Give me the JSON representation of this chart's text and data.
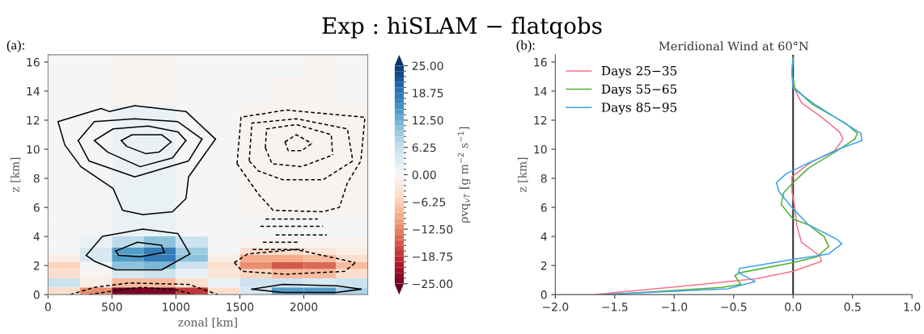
{
  "chart_data": [
    {
      "type": "heatmap",
      "title": "Exp : hiSLAM − flatqobs",
      "xlabel": "zonal [km]",
      "ylabel": "z [km]",
      "clabel": "ρvq$_{vT}$ [g m$^{−2}$ s$^{−1}$]",
      "annotations": [
        "(a):"
      ],
      "x": [
        125,
        375,
        625,
        875,
        1125,
        1375,
        1625,
        1875,
        2125,
        2375
      ],
      "y": [
        0.25,
        0.75,
        1.5,
        2.0,
        2.5,
        3.0,
        3.5,
        4.5,
        6,
        8,
        10,
        12,
        14,
        16
      ],
      "cells": [
        [
          -4,
          -12,
          -24,
          -25,
          -18,
          -5,
          4,
          14,
          14,
          8
        ],
        [
          6,
          -2,
          -8,
          -8,
          -4,
          2,
          6,
          6,
          4,
          6
        ],
        [
          -4,
          -1,
          4,
          5,
          2,
          -3,
          -6,
          -8,
          -8,
          -5
        ],
        [
          -6,
          0,
          10,
          12,
          6,
          -4,
          -12,
          -16,
          -14,
          -8
        ],
        [
          -2,
          4,
          14,
          18,
          10,
          -2,
          -10,
          -10,
          -8,
          -4
        ],
        [
          0,
          4,
          14,
          18,
          9,
          0,
          -4,
          -4,
          -3,
          -2
        ],
        [
          0,
          2,
          7,
          10,
          5,
          0,
          -1,
          -1,
          -1,
          -1
        ],
        [
          0,
          1,
          2,
          2,
          1,
          0,
          0,
          0,
          0,
          0
        ],
        [
          1,
          1,
          1.5,
          1.5,
          1,
          0,
          -1,
          -1,
          -1,
          -1
        ],
        [
          1,
          1,
          1.5,
          1.5,
          1,
          0,
          -1,
          -1,
          -1,
          -1
        ],
        [
          1,
          1,
          1.5,
          1.5,
          1,
          0,
          -1,
          -1,
          -1,
          -1
        ],
        [
          1,
          1,
          1.5,
          1.5,
          1,
          0,
          -1,
          -1,
          -1,
          -1
        ],
        [
          0.5,
          0,
          -0.5,
          -0.5,
          0,
          0.5,
          0,
          -0.5,
          -0.5,
          0
        ],
        [
          1,
          0,
          -0.5,
          -0.5,
          0,
          0,
          0,
          0,
          -0.5,
          0
        ]
      ],
      "clim": [
        -25,
        25
      ],
      "cticks": [
        {
          "value": 25,
          "label": "25.00"
        },
        {
          "value": 18.75,
          "label": "18.75"
        },
        {
          "value": 12.5,
          "label": "12.50"
        },
        {
          "value": 6.25,
          "label": "6.25"
        },
        {
          "value": 0,
          "label": "0.00"
        },
        {
          "value": -6.25,
          "label": "−6.25"
        },
        {
          "value": -12.5,
          "label": "−12.50"
        },
        {
          "value": -18.75,
          "label": "−18.75"
        },
        {
          "value": -25,
          "label": "−25.00"
        }
      ],
      "xlim": [
        0,
        2500
      ],
      "ylim": [
        0,
        16.5
      ],
      "xticks": [
        0,
        500,
        1000,
        1500,
        2000
      ],
      "yticks": [
        0,
        2,
        4,
        6,
        8,
        10,
        12,
        14,
        16
      ],
      "series": [
        {
          "type": "line",
          "color": "#000000",
          "line_style": "solid",
          "x": [
            78,
            415,
            478,
            678,
            1078,
            1309
          ],
          "values": [
            11.9,
            12.8,
            12.6,
            13.0,
            12.6,
            10.7
          ]
        },
        {
          "type": "line",
          "color": "#000000",
          "line_style": "solid",
          "x": [
            78,
            131,
            257,
            509,
            583,
            741,
            973,
            1078,
            1099,
            1309
          ],
          "values": [
            11.9,
            10.3,
            8.8,
            7.3,
            5.8,
            5.5,
            5.7,
            6.6,
            8.1,
            10.7
          ]
        },
        {
          "type": "line",
          "color": "#000000",
          "line_style": "solid",
          "x": [
            236,
            362,
            678,
            1015,
            1204
          ],
          "values": [
            10.6,
            11.9,
            12.1,
            11.9,
            10.7
          ]
        },
        {
          "type": "line",
          "color": "#000000",
          "line_style": "solid",
          "x": [
            236,
            320,
            678,
            1099,
            1204
          ],
          "values": [
            10.6,
            9.2,
            8.1,
            9.2,
            10.7
          ]
        },
        {
          "type": "line",
          "color": "#000000",
          "line_style": "solid",
          "x": [
            362,
            509,
            783,
            1015,
            1078
          ],
          "values": [
            10.6,
            11.4,
            11.6,
            11.2,
            10.6
          ]
        },
        {
          "type": "line",
          "color": "#000000",
          "line_style": "solid",
          "x": [
            362,
            467,
            720,
            973,
            1078
          ],
          "values": [
            10.6,
            9.8,
            8.8,
            9.4,
            10.6
          ]
        },
        {
          "type": "line",
          "color": "#000000",
          "line_style": "solid",
          "x": [
            573,
            657,
            888,
            962
          ],
          "values": [
            10.6,
            11.0,
            11.0,
            10.5
          ]
        },
        {
          "type": "line",
          "color": "#000000",
          "line_style": "solid",
          "x": [
            573,
            615,
            762,
            867,
            962
          ],
          "values": [
            10.6,
            10.2,
            9.7,
            9.8,
            10.5
          ]
        },
        {
          "type": "line",
          "color": "#000000",
          "line_style": "solid",
          "x": [
            299,
            425,
            741,
            1015,
            1109
          ],
          "values": [
            2.7,
            4.0,
            4.5,
            4.2,
            2.8
          ]
        },
        {
          "type": "line",
          "color": "#000000",
          "line_style": "solid",
          "x": [
            299,
            362,
            530,
            888,
            1109
          ],
          "values": [
            2.7,
            2.3,
            1.7,
            1.7,
            2.8
          ]
        },
        {
          "type": "line",
          "color": "#000000",
          "line_style": "solid",
          "x": [
            530,
            699,
            888,
            909
          ],
          "values": [
            3.0,
            3.6,
            3.4,
            2.9
          ]
        },
        {
          "type": "line",
          "color": "#000000",
          "line_style": "solid",
          "x": [
            530,
            552,
            720,
            909
          ],
          "values": [
            3.0,
            2.7,
            2.6,
            2.9
          ]
        },
        {
          "type": "line",
          "color": "#000000",
          "line_style": "solid",
          "x": [
            1594,
            1836,
            2257,
            2446
          ],
          "values": [
            0.37,
            0.7,
            0.6,
            0.37
          ]
        },
        {
          "type": "line",
          "color": "#000000",
          "line_style": "solid",
          "x": [
            1594,
            1836,
            2257,
            2446
          ],
          "values": [
            0.37,
            0.15,
            0.15,
            0.37
          ]
        },
        {
          "type": "line",
          "color": "#000000",
          "line_style": "dashed",
          "x": [
            1478,
            1509,
            1857,
            2478
          ],
          "values": [
            9.0,
            12.2,
            12.7,
            12.2
          ]
        },
        {
          "type": "line",
          "color": "#000000",
          "line_style": "dashed",
          "x": [
            1478,
            1646,
            1760,
            2150,
            2278,
            2341,
            2446,
            2478
          ],
          "values": [
            9.0,
            6.9,
            5.8,
            5.7,
            6.0,
            7.7,
            9.2,
            12.2
          ]
        },
        {
          "type": "line",
          "color": "#000000",
          "line_style": "dashed",
          "x": [
            1700,
            2110
          ],
          "values": [
            5.2,
            5.2
          ]
        },
        {
          "type": "line",
          "color": "#000000",
          "line_style": "dashed",
          "x": [
            1660,
            2150
          ],
          "values": [
            4.7,
            4.7
          ]
        },
        {
          "type": "line",
          "color": "#000000",
          "line_style": "dashed",
          "x": [
            1780,
            2180
          ],
          "values": [
            4.1,
            4.1
          ]
        },
        {
          "type": "line",
          "color": "#000000",
          "line_style": "dashed",
          "x": [
            1680,
            1960
          ],
          "values": [
            3.6,
            3.6
          ]
        },
        {
          "type": "line",
          "color": "#000000",
          "line_style": "dashed",
          "x": [
            1600,
            2000
          ],
          "values": [
            3.1,
            3.1
          ]
        },
        {
          "type": "line",
          "color": "#000000",
          "line_style": "dashed",
          "x": [
            1573,
            1594,
            1941,
            2341,
            2383
          ],
          "values": [
            9.2,
            11.8,
            12.1,
            11.4,
            9.2
          ]
        },
        {
          "type": "line",
          "color": "#000000",
          "line_style": "dashed",
          "x": [
            1573,
            1646,
            1836,
            2152,
            2383
          ],
          "values": [
            9.2,
            8.5,
            7.9,
            7.9,
            9.2
          ]
        },
        {
          "type": "line",
          "color": "#000000",
          "line_style": "dashed",
          "x": [
            1699,
            1709,
            1941,
            2215,
            2225
          ],
          "values": [
            10.1,
            11.4,
            11.7,
            11.0,
            9.6
          ]
        },
        {
          "type": "line",
          "color": "#000000",
          "line_style": "dashed",
          "x": [
            1699,
            1752,
            1983,
            2225
          ],
          "values": [
            10.1,
            9.0,
            8.8,
            9.6
          ]
        },
        {
          "type": "line",
          "color": "#000000",
          "line_style": "dashed",
          "x": [
            1852,
            1941,
            2063
          ],
          "values": [
            10.5,
            11.0,
            10.4
          ]
        },
        {
          "type": "line",
          "color": "#000000",
          "line_style": "dashed",
          "x": [
            1852,
            1878,
            1983,
            2063
          ],
          "values": [
            10.5,
            9.9,
            9.9,
            10.4
          ]
        },
        {
          "type": "line",
          "color": "#000000",
          "line_style": "dashed",
          "x": [
            1457,
            1562,
            1941,
            2404
          ],
          "values": [
            2.2,
            2.8,
            3.1,
            2.2
          ]
        },
        {
          "type": "line",
          "color": "#000000",
          "line_style": "dashed",
          "x": [
            1457,
            1520,
            1857,
            2320,
            2404
          ],
          "values": [
            2.2,
            1.6,
            1.4,
            1.6,
            2.2
          ]
        },
        {
          "type": "line",
          "color": "#000000",
          "line_style": "dashed",
          "x": [
            173,
            362,
            636,
            1099,
            1330
          ],
          "values": [
            0,
            0.5,
            0.8,
            0.7,
            0
          ]
        },
        {
          "type": "line",
          "color": "#000000",
          "line_style": "dashed",
          "x": [
            320,
            573,
            731,
            994,
            1141
          ],
          "values": [
            0,
            0.34,
            0.5,
            0.34,
            0
          ]
        }
      ]
    },
    {
      "type": "line",
      "title": "Meridional Wind at 60°N",
      "ylabel": "z [km]",
      "annotations": [
        "(b):"
      ],
      "xlim": [
        -2,
        1
      ],
      "ylim": [
        0,
        16.5
      ],
      "xticks": [
        {
          "value": -2,
          "label": "−2.0"
        },
        {
          "value": -1.5,
          "label": "−1.5"
        },
        {
          "value": -1,
          "label": "−1.0"
        },
        {
          "value": -0.5,
          "label": "−0.5"
        },
        {
          "value": 0,
          "label": "0.0"
        },
        {
          "value": 0.5,
          "label": "0.5"
        },
        {
          "value": 1,
          "label": "1.0"
        }
      ],
      "yticks": [
        0,
        2,
        4,
        6,
        8,
        10,
        12,
        14,
        16
      ],
      "legend": "top left",
      "grid": false,
      "ref_lines": [
        {
          "axis": "x",
          "value": 0,
          "color": "#333333"
        }
      ],
      "series": [
        {
          "name": "Days 25−35",
          "color": "#f77189",
          "x": [
            -1.67,
            -0.77,
            -0.3,
            0.0,
            0.24,
            0.22,
            0.07,
            0.03,
            0.015,
            -0.01,
            -0.01,
            0.15,
            0.35,
            0.42,
            0.39,
            0.24,
            0.07,
            0.01,
            -0.01,
            0
          ],
          "values": [
            0,
            0.7,
            1.1,
            1.6,
            2.3,
            2.7,
            3.6,
            4.8,
            6.0,
            7.1,
            8.1,
            9.1,
            9.9,
            10.7,
            11.2,
            12.2,
            13.2,
            14.2,
            15.2,
            16.3
          ]
        },
        {
          "name": "Days 55−65",
          "color": "#50b131",
          "x": [
            -1.56,
            -0.6,
            -0.44,
            -0.49,
            -0.45,
            0.0,
            0.2,
            0.3,
            0.26,
            0.13,
            0.0,
            -0.1,
            -0.08,
            0.0,
            0.13,
            0.37,
            0.52,
            0.54,
            0.44,
            0.16,
            0.015,
            -0.01,
            0
          ],
          "values": [
            0,
            0.5,
            0.7,
            1.3,
            1.5,
            2.2,
            2.6,
            3.3,
            4.0,
            4.8,
            5.2,
            6.2,
            7.0,
            7.7,
            8.7,
            9.9,
            10.7,
            11.1,
            11.8,
            13.1,
            14.2,
            15.2,
            16.3
          ]
        },
        {
          "name": "Days 85−95",
          "color": "#3ba3ec",
          "x": [
            -1.62,
            -0.55,
            -0.32,
            -0.46,
            -0.45,
            -0.02,
            0.3,
            0.41,
            0.37,
            0.13,
            0.0,
            -0.12,
            -0.14,
            -0.06,
            0.09,
            0.41,
            0.58,
            0.57,
            0.45,
            0.18,
            0.0,
            -0.01,
            0
          ],
          "values": [
            0,
            0.4,
            0.9,
            1.5,
            1.8,
            2.4,
            2.8,
            3.5,
            3.8,
            4.8,
            5.9,
            7.1,
            7.7,
            8.3,
            8.9,
            10.1,
            10.6,
            11.1,
            11.7,
            13.1,
            14.2,
            15.2,
            16.3
          ]
        }
      ]
    }
  ]
}
